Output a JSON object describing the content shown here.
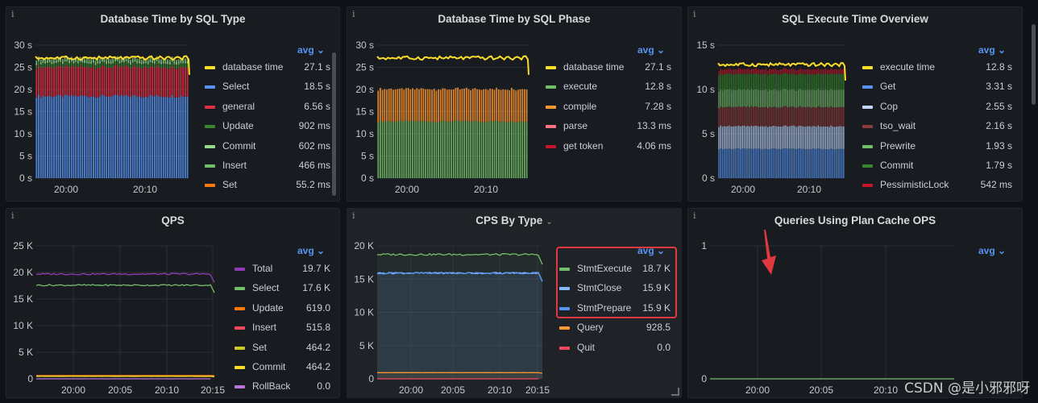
{
  "watermark": "CSDN @是小邪邪呀",
  "avg_label": "avg",
  "info_glyph": "i",
  "chart_data": [
    {
      "type": "area",
      "title": "Database Time by SQL Type",
      "x": [
        "20:00",
        "20:10"
      ],
      "ylim": [
        0,
        30
      ],
      "y_ticks": [
        "0 s",
        "5 s",
        "10 s",
        "15 s",
        "20 s",
        "25 s",
        "30 s"
      ],
      "series": [
        {
          "name": "database time",
          "value": "27.1 s",
          "color": "#fade2a",
          "level": 27.1
        },
        {
          "name": "Select",
          "value": "18.5 s",
          "color": "#5794f2",
          "level": 18.5
        },
        {
          "name": "general",
          "value": "6.56 s",
          "color": "#e02f44",
          "level": 6.56
        },
        {
          "name": "Update",
          "value": "902 ms",
          "color": "#37872d",
          "level": 0.902
        },
        {
          "name": "Commit",
          "value": "602 ms",
          "color": "#96d98d",
          "level": 0.602
        },
        {
          "name": "Insert",
          "value": "466 ms",
          "color": "#73bf69",
          "level": 0.466
        },
        {
          "name": "Set",
          "value": "55.2 ms",
          "color": "#ff780a",
          "level": 0.0552
        }
      ]
    },
    {
      "type": "area",
      "title": "Database Time by SQL Phase",
      "x": [
        "20:00",
        "20:10"
      ],
      "ylim": [
        0,
        30
      ],
      "y_ticks": [
        "0 s",
        "5 s",
        "10 s",
        "15 s",
        "20 s",
        "25 s",
        "30 s"
      ],
      "series": [
        {
          "name": "database time",
          "value": "27.1 s",
          "color": "#fade2a",
          "level": 27.1
        },
        {
          "name": "execute",
          "value": "12.8 s",
          "color": "#73bf69",
          "level": 12.8
        },
        {
          "name": "compile",
          "value": "7.28 s",
          "color": "#ff9830",
          "level": 7.28
        },
        {
          "name": "parse",
          "value": "13.3 ms",
          "color": "#ff7383",
          "level": 0.0133
        },
        {
          "name": "get token",
          "value": "4.06 ms",
          "color": "#c4162a",
          "level": 0.00406
        }
      ]
    },
    {
      "type": "area",
      "title": "SQL Execute Time Overview",
      "x": [
        "20:00",
        "20:10"
      ],
      "ylim": [
        0,
        15
      ],
      "y_ticks": [
        "0 s",
        "5 s",
        "10 s",
        "15 s"
      ],
      "series": [
        {
          "name": "execute time",
          "value": "12.8 s",
          "color": "#fade2a",
          "level": 12.8
        },
        {
          "name": "Get",
          "value": "3.31 s",
          "color": "#5794f2",
          "level": 3.31
        },
        {
          "name": "Cop",
          "value": "2.55 s",
          "color": "#c0d8ff",
          "level": 2.55
        },
        {
          "name": "tso_wait",
          "value": "2.16 s",
          "color": "#8f3b3b",
          "level": 2.16
        },
        {
          "name": "Prewrite",
          "value": "1.93 s",
          "color": "#73bf69",
          "level": 1.93
        },
        {
          "name": "Commit",
          "value": "1.79 s",
          "color": "#37872d",
          "level": 1.79
        },
        {
          "name": "PessimisticLock",
          "value": "542 ms",
          "color": "#c4162a",
          "level": 0.542
        }
      ]
    },
    {
      "type": "line",
      "title": "QPS",
      "x": [
        "20:00",
        "20:05",
        "20:10",
        "20:15"
      ],
      "ylim": [
        0,
        25000
      ],
      "y_ticks": [
        "0",
        "5 K",
        "10 K",
        "15 K",
        "20 K",
        "25 K"
      ],
      "series": [
        {
          "name": "Total",
          "value": "19.7 K",
          "color": "#8f3bb8",
          "level": 19700
        },
        {
          "name": "Select",
          "value": "17.6 K",
          "color": "#73bf69",
          "level": 17600
        },
        {
          "name": "Update",
          "value": "619.0",
          "color": "#ff780a",
          "level": 619
        },
        {
          "name": "Insert",
          "value": "515.8",
          "color": "#f2495c",
          "level": 515.8
        },
        {
          "name": "Set",
          "value": "464.2",
          "color": "#cbcb2a",
          "level": 464.2
        },
        {
          "name": "Commit",
          "value": "464.2",
          "color": "#fade2a",
          "level": 464.2
        },
        {
          "name": "RollBack",
          "value": "0.0",
          "color": "#b877d9",
          "level": 0
        }
      ]
    },
    {
      "type": "line",
      "title": "CPS By Type",
      "x": [
        "20:00",
        "20:05",
        "20:10",
        "20:15"
      ],
      "ylim": [
        0,
        20000
      ],
      "y_ticks": [
        "0",
        "5 K",
        "10 K",
        "15 K",
        "20 K"
      ],
      "series": [
        {
          "name": "StmtExecute",
          "value": "18.7 K",
          "color": "#73bf69",
          "level": 18700
        },
        {
          "name": "StmtClose",
          "value": "15.9 K",
          "color": "#8ab8ff",
          "level": 15900
        },
        {
          "name": "StmtPrepare",
          "value": "15.9 K",
          "color": "#5794f2",
          "level": 15900
        },
        {
          "name": "Query",
          "value": "928.5",
          "color": "#ff9830",
          "level": 928.5
        },
        {
          "name": "Quit",
          "value": "0.0",
          "color": "#f2495c",
          "level": 0
        }
      ]
    },
    {
      "type": "line",
      "title": "Queries Using Plan Cache OPS",
      "x": [
        "20:00",
        "20:05",
        "20:10"
      ],
      "ylim": [
        0,
        1
      ],
      "y_ticks": [
        "0",
        "1"
      ],
      "series": [
        {
          "name": "",
          "value": "",
          "color": "#73bf69",
          "level": 0
        }
      ]
    }
  ]
}
